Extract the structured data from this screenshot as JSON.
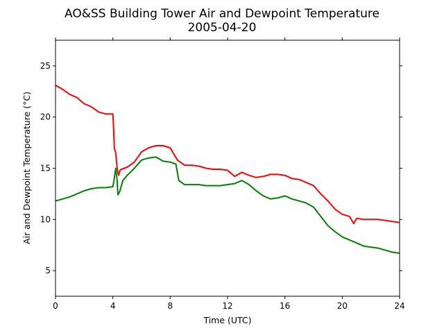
{
  "chart_data": {
    "type": "line",
    "title": "AO&SS Building Tower Air and Dewpoint Temperature",
    "subtitle": "2005-04-20",
    "xlabel": "Time (UTC)",
    "ylabel": "Air and Dewpoint Temperature (°C)",
    "xlim": [
      0,
      24
    ],
    "ylim": [
      2.5,
      27.5
    ],
    "xticks": [
      0,
      4,
      8,
      12,
      16,
      20,
      24
    ],
    "yticks": [
      5,
      10,
      15,
      20,
      25
    ],
    "grid": false,
    "legend": false,
    "series": [
      {
        "color": "#ff0000",
        "x": [
          0,
          0.5,
          1,
          1.5,
          2,
          2.5,
          3,
          3.5,
          4,
          4.05,
          4.1,
          4.2,
          4.3,
          4.4,
          4.5,
          4.6,
          5,
          5.5,
          6,
          6.5,
          7,
          7.5,
          8,
          8.5,
          9,
          9.5,
          10,
          10.5,
          11,
          11.5,
          12,
          12.5,
          13,
          13.5,
          14,
          14.5,
          15,
          15.5,
          16,
          16.5,
          17,
          17.5,
          18,
          18.5,
          19,
          19.5,
          20,
          20.5,
          20.8,
          21,
          21.5,
          22,
          22.5,
          23,
          23.5,
          24
        ],
        "y": [
          23.1,
          22.7,
          22.2,
          21.9,
          21.3,
          21.0,
          20.5,
          20.3,
          20.3,
          19.0,
          17.0,
          16.5,
          15.0,
          14.3,
          14.8,
          14.9,
          15.1,
          15.6,
          16.6,
          17.0,
          17.2,
          17.2,
          17.0,
          15.8,
          15.3,
          15.3,
          15.2,
          15.0,
          14.9,
          14.9,
          14.8,
          14.2,
          14.6,
          14.3,
          14.1,
          14.2,
          14.4,
          14.4,
          14.3,
          14.0,
          13.9,
          13.6,
          13.3,
          12.5,
          11.8,
          11.0,
          10.5,
          10.3,
          9.6,
          10.1,
          10.0,
          10.0,
          10.0,
          9.9,
          9.8,
          9.7
        ]
      },
      {
        "color": "#008000",
        "x": [
          0,
          0.5,
          1,
          1.5,
          2,
          2.5,
          3,
          3.5,
          4,
          4.1,
          4.2,
          4.3,
          4.35,
          4.5,
          4.7,
          5,
          5.5,
          6,
          6.5,
          7,
          7.5,
          8,
          8.4,
          8.6,
          9,
          9.5,
          10,
          10.5,
          11,
          11.5,
          12,
          12.5,
          13,
          13.5,
          14,
          14.5,
          15,
          15.5,
          16,
          16.5,
          17,
          17.5,
          18,
          18.5,
          19,
          19.5,
          20,
          20.5,
          21,
          21.5,
          22,
          22.5,
          23,
          23.5,
          24
        ],
        "y": [
          11.8,
          12.0,
          12.2,
          12.5,
          12.8,
          13.0,
          13.1,
          13.1,
          13.2,
          14.0,
          15.0,
          13.8,
          12.4,
          12.8,
          13.8,
          14.3,
          15.0,
          15.8,
          16.0,
          16.1,
          15.7,
          15.6,
          15.4,
          13.8,
          13.4,
          13.4,
          13.4,
          13.3,
          13.3,
          13.3,
          13.4,
          13.5,
          13.8,
          13.4,
          12.8,
          12.3,
          12.0,
          12.1,
          12.3,
          12.0,
          11.8,
          11.6,
          11.2,
          10.3,
          9.4,
          8.8,
          8.3,
          8.0,
          7.7,
          7.4,
          7.3,
          7.2,
          7.0,
          6.8,
          6.7
        ]
      }
    ]
  }
}
